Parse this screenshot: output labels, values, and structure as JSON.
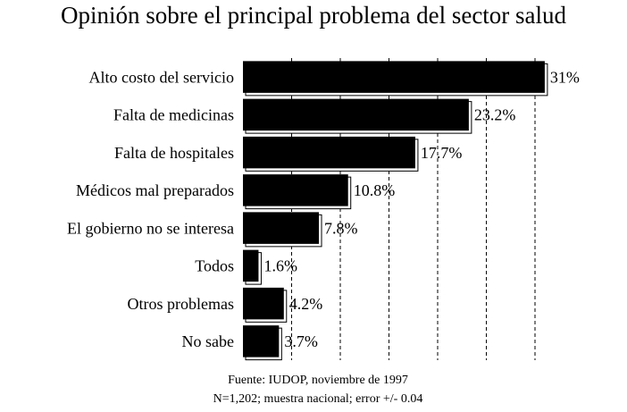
{
  "chart_data": {
    "type": "bar",
    "orientation": "horizontal",
    "title": "Opinión sobre el principal problema del sector salud",
    "categories": [
      "Alto costo del servicio",
      "Falta de medicinas",
      "Falta de hospitales",
      "Médicos mal preparados",
      "El gobierno no se interesa",
      "Todos",
      "Otros problemas",
      "No sabe"
    ],
    "values": [
      31,
      23.2,
      17.7,
      10.8,
      7.8,
      1.6,
      4.2,
      3.7
    ],
    "value_labels": [
      "31%",
      "23.2%",
      "17.7%",
      "10.8%",
      "7.8%",
      "1.6%",
      "4.2%",
      "3.7%"
    ],
    "color": "#000000",
    "xlim": [
      0,
      32
    ],
    "xticks": [
      5,
      10,
      15,
      20,
      25,
      30
    ],
    "grid": true,
    "notes": [
      "Fuente: IUDOP, noviembre de 1997",
      "N=1,202; muestra nacional; error +/- 0.04"
    ]
  }
}
